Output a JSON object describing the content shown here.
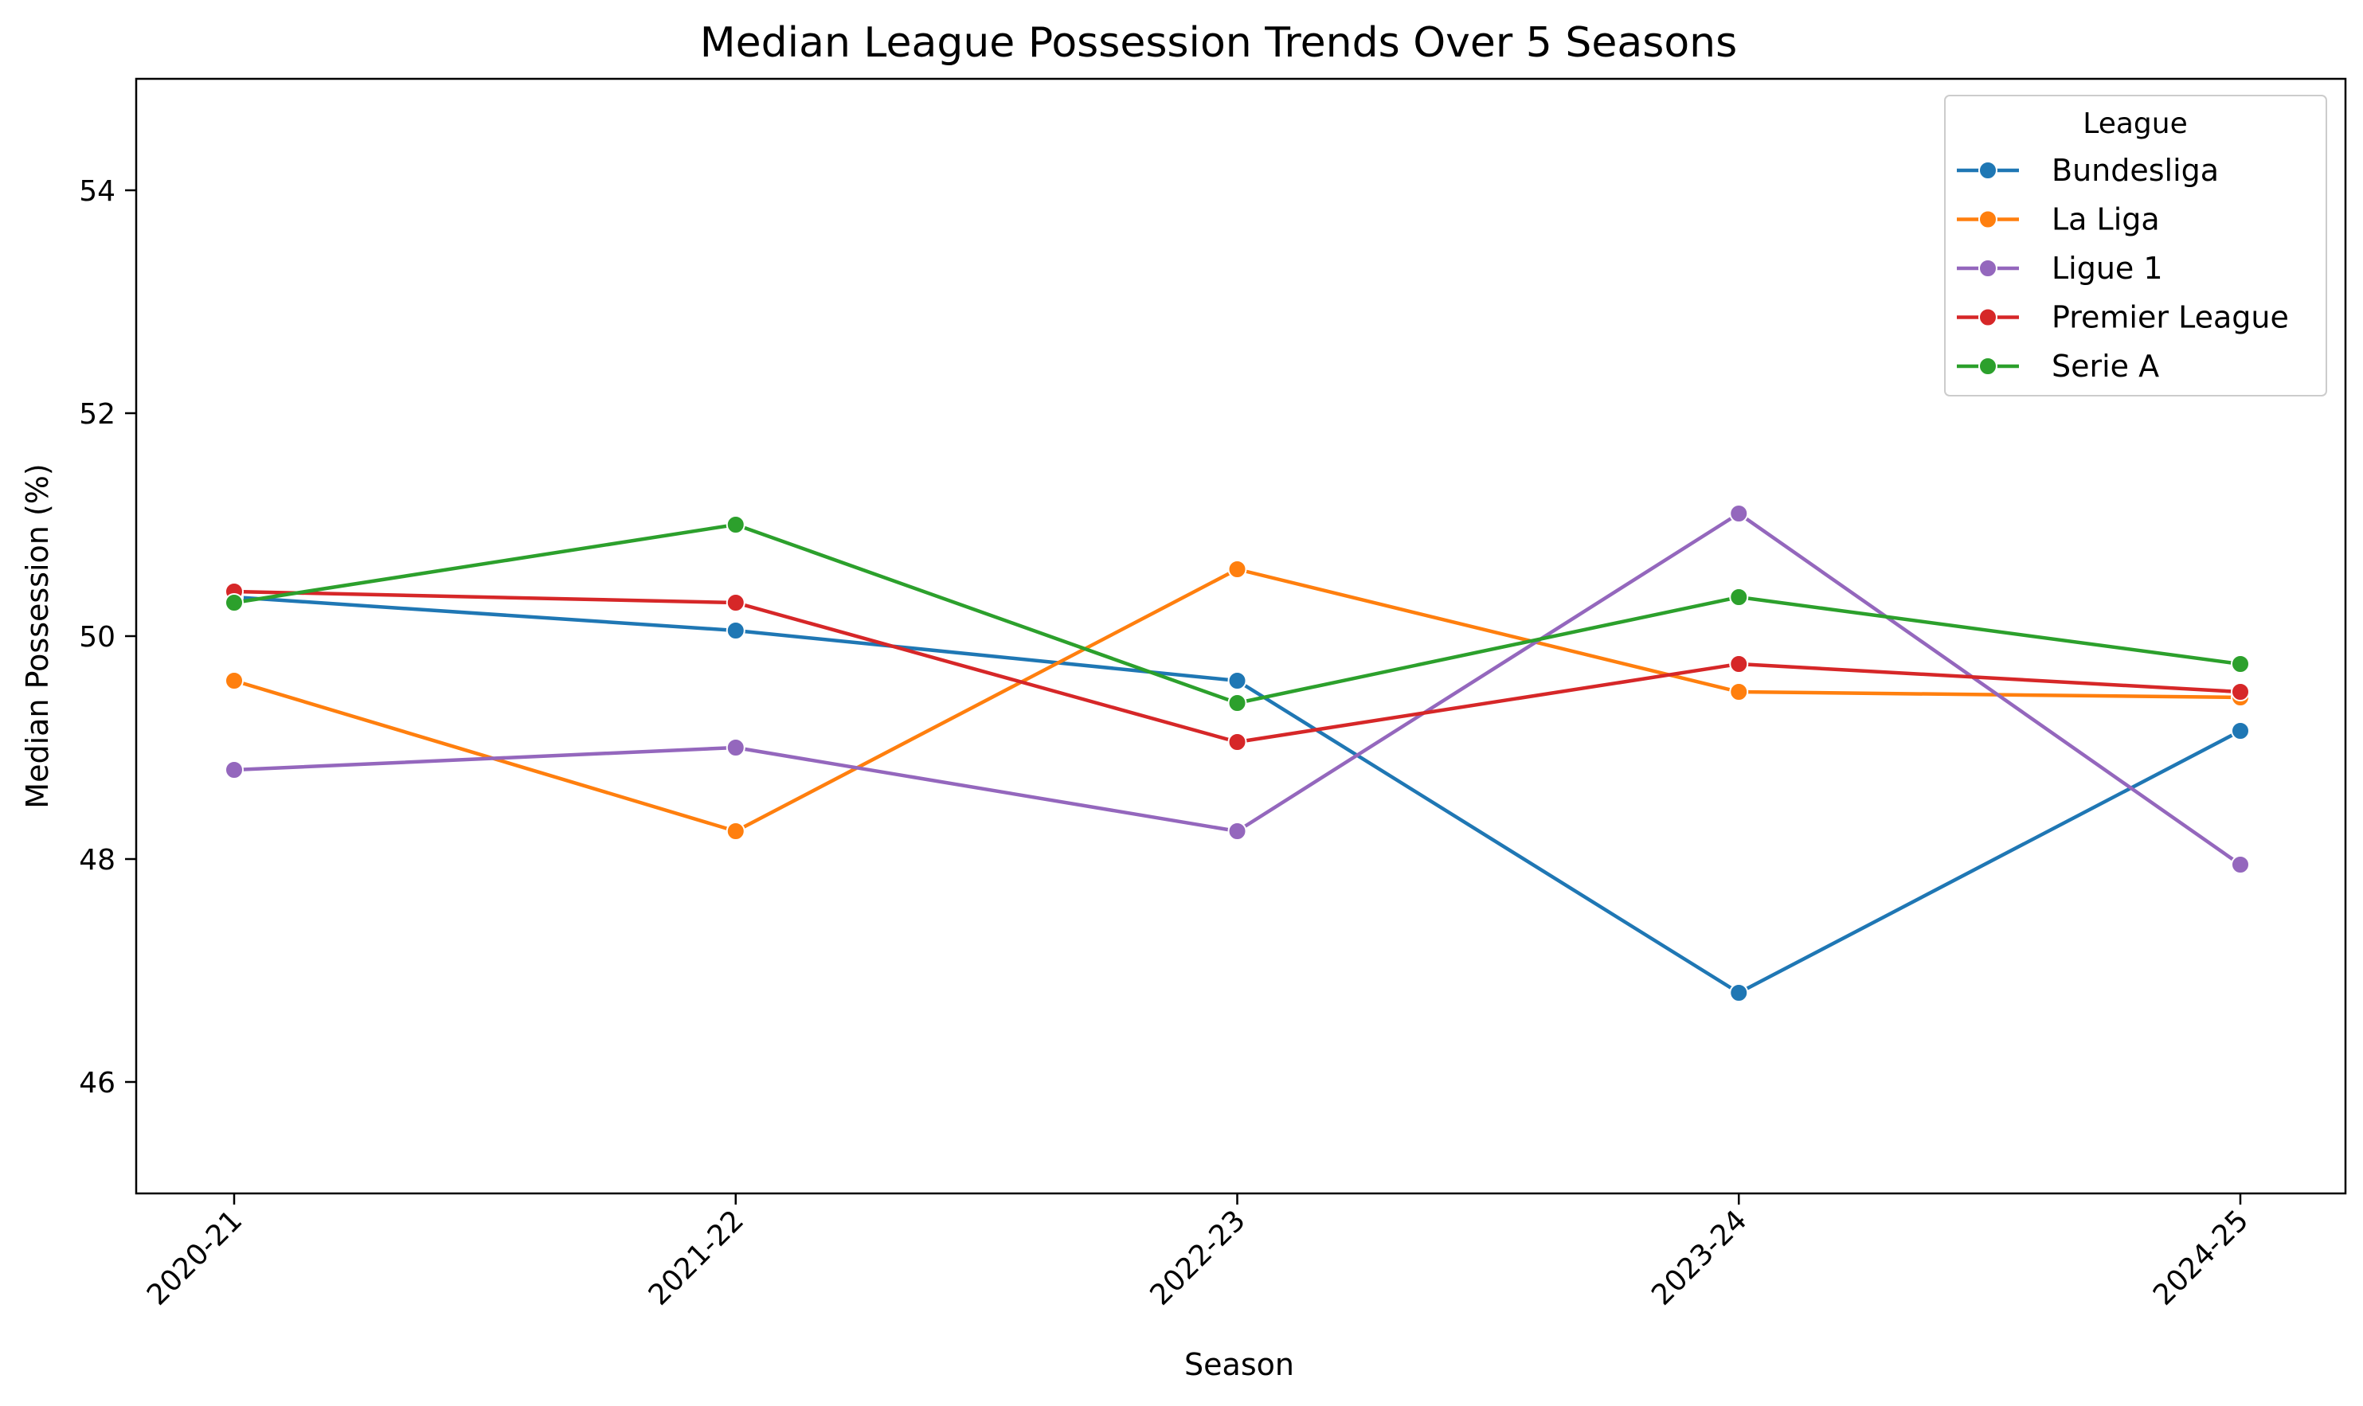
{
  "chart_data": {
    "type": "line",
    "title": "Median League Possession Trends Over 5 Seasons",
    "xlabel": "Season",
    "ylabel": "Median Possession (%)",
    "categories": [
      "2020-21",
      "2021-22",
      "2022-23",
      "2023-24",
      "2024-25"
    ],
    "ylim": [
      45,
      55
    ],
    "yticks": [
      46,
      48,
      50,
      52,
      54
    ],
    "grid": false,
    "legend": {
      "title": "League",
      "placement": "top-right"
    },
    "series": [
      {
        "name": "Bundesliga",
        "color": "#1f77b4",
        "values": [
          50.35,
          50.05,
          49.6,
          46.8,
          49.15
        ]
      },
      {
        "name": "La Liga",
        "color": "#ff7f0e",
        "values": [
          49.6,
          48.25,
          50.6,
          49.5,
          49.45
        ]
      },
      {
        "name": "Ligue 1",
        "color": "#9467bd",
        "values": [
          48.8,
          49.0,
          48.25,
          51.1,
          47.95
        ]
      },
      {
        "name": "Premier League",
        "color": "#d62728",
        "values": [
          50.4,
          50.3,
          49.05,
          49.75,
          49.5
        ]
      },
      {
        "name": "Serie A",
        "color": "#2ca02c",
        "values": [
          50.3,
          51.0,
          49.4,
          50.35,
          49.75
        ]
      }
    ]
  }
}
